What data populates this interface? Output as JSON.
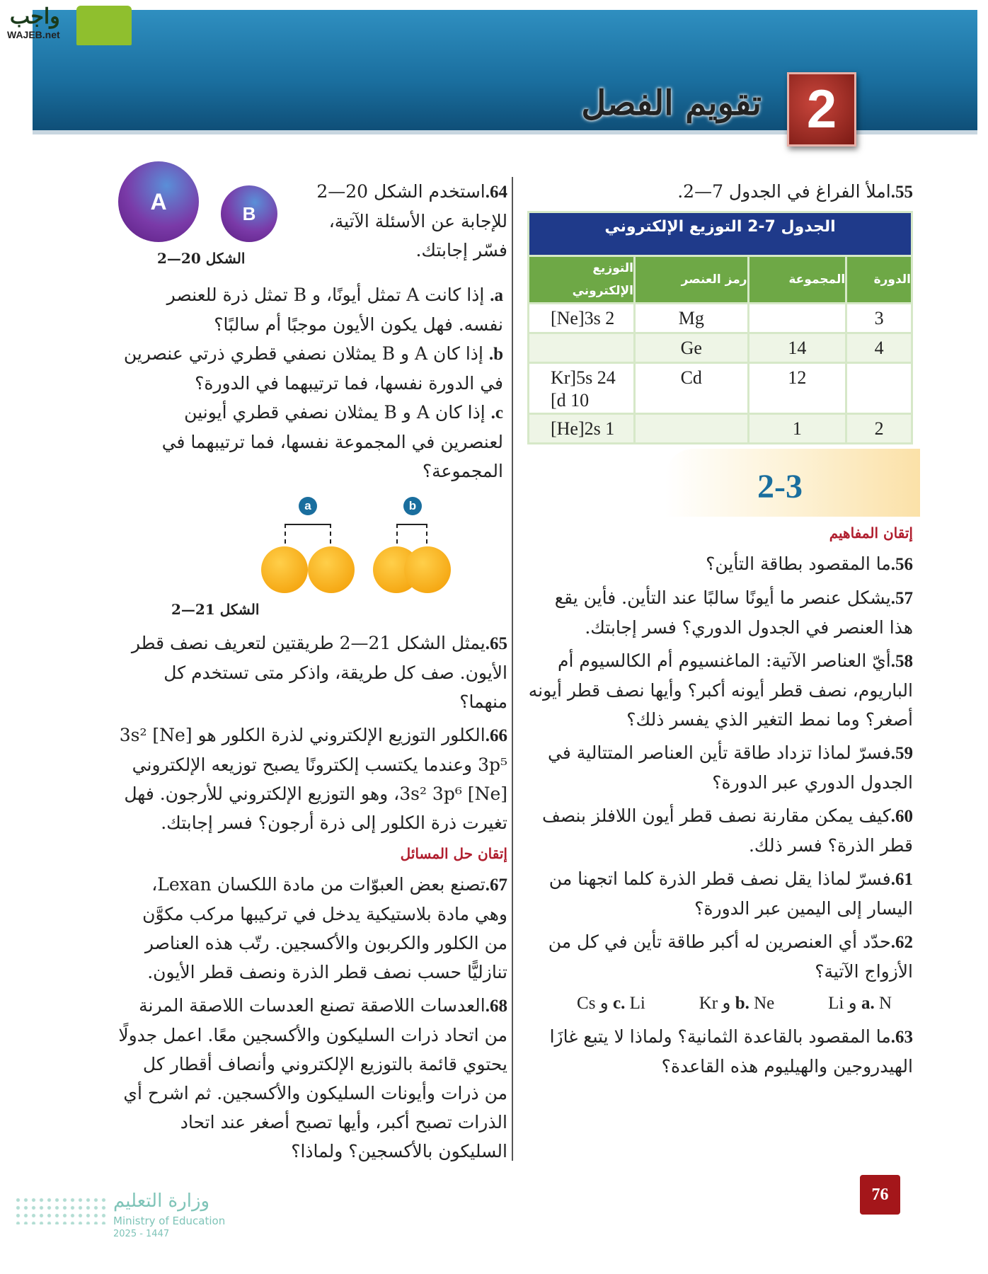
{
  "logo": {
    "text": "واجب",
    "sub": "WAJEB.net"
  },
  "header": {
    "title": "تقويم الفصل",
    "chapter": "2"
  },
  "right": {
    "q55": {
      "n": "55.",
      "text": "املأ الفراغ في الجدول 7—2."
    },
    "table": {
      "title": "الجدول 7-2 التوزيع الإلكتروني",
      "headers": [
        "الدورة",
        "المجموعة",
        "رمز العنصر",
        "التوزيع الإلكتروني"
      ],
      "rows": [
        [
          "3",
          "",
          "Mg",
          "[Ne]3s 2"
        ],
        [
          "4",
          "14",
          "Ge",
          ""
        ],
        [
          "",
          "12",
          "Cd",
          "Kr]5s 24 [d 10"
        ],
        [
          "2",
          "1",
          "",
          "[He]2s 1"
        ]
      ]
    },
    "section": "2-3",
    "concepts_head": "إتقان المفاهيم",
    "q56": {
      "n": "56.",
      "text": "ما المقصود بطاقة التأين؟"
    },
    "q57": {
      "n": "57.",
      "text": "يشكل عنصر ما أيونًا سالبًا عند التأين. فأين يقع هذا العنصر في الجدول الدوري؟ فسر إجابتك."
    },
    "q58": {
      "n": "58.",
      "text": "أيّ العناصر الآتية: الماغنسيوم أم الكالسيوم أم الباريوم، نصف قطر أيونه أكبر؟ وأيها نصف قطر أيونه أصغر؟ وما نمط التغير الذي يفسر ذلك؟"
    },
    "q59": {
      "n": "59.",
      "text": "فسرّ لماذا تزداد طاقة تأين العناصر المتتالية في الجدول الدوري عبر الدورة؟"
    },
    "q60": {
      "n": "60.",
      "text": "كيف يمكن مقارنة نصف قطر أيون اللافلز بنصف قطر الذرة؟ فسر ذلك."
    },
    "q61": {
      "n": "61.",
      "text": "فسرّ لماذا يقل نصف قطر الذرة كلما اتجهنا من اليسار إلى اليمين عبر الدورة؟"
    },
    "q62": {
      "n": "62.",
      "text": "حدّد أي العنصرين له أكبر طاقة تأين في كل من الأزواج الآتية؟",
      "opts": [
        {
          "l": "a.",
          "t": "N و Li"
        },
        {
          "l": "b.",
          "t": "Ne و Kr"
        },
        {
          "l": "c.",
          "t": "Li و Cs"
        }
      ]
    },
    "q63": {
      "n": "63.",
      "text": "ما المقصود بالقاعدة الثمانية؟ ولماذا لا يتبع غازَا الهيدروجين والهيليوم هذه القاعدة؟"
    }
  },
  "left": {
    "q64": {
      "n": "64.",
      "text": "استخدم الشكل 20—2 للإجابة عن الأسئلة الآتية، فسّر إجابتك.",
      "subs": [
        {
          "l": "a.",
          "t": "إذا كانت A تمثل أيونًا، و B تمثل ذرة للعنصر نفسه. فهل يكون الأيون موجبًا أم سالبًا؟"
        },
        {
          "l": "b.",
          "t": "إذا كان A و B يمثلان نصفي قطري ذرتي عنصرين في الدورة نفسها، فما ترتيبهما في الدورة؟"
        },
        {
          "l": "c.",
          "t": "إذا كان A و B يمثلان نصفي قطري أيونين لعنصرين في المجموعة نفسها، فما ترتيبهما في المجموعة؟"
        }
      ]
    },
    "fig20": {
      "caption": "الشكل 20—2",
      "a": "A",
      "b": "B"
    },
    "fig21": {
      "caption": "الشكل 21—2",
      "a": "a",
      "b": "b"
    },
    "q65": {
      "n": "65.",
      "text": "يمثل الشكل 21—2 طريقتين لتعريف نصف قطر الأيون. صف كل طريقة، واذكر متى تستخدم كل منهما؟"
    },
    "q66": {
      "n": "66.",
      "text": "الكلور التوزيع الإلكتروني لذرة الكلور هو [Ne] 3s² 3p⁵ وعندما يكتسب إلكترونًا يصبح توزيعه الإلكتروني [Ne] 3s² 3p⁶، وهو التوزيع الإلكتروني للأرجون. فهل تغيرت ذرة الكلور إلى ذرة أرجون؟ فسر إجابتك."
    },
    "problems_head": "إتقان حل المسائل",
    "q67": {
      "n": "67.",
      "text": "تصنع بعض العبوّات من مادة اللكسان Lexan، وهي مادة بلاستيكية يدخل في تركيبها مركب مكوَّن من الكلور والكربون والأكسجين. رتّب هذه العناصر تنازليًّا حسب نصف قطر الذرة ونصف قطر الأيون."
    },
    "q68": {
      "n": "68.",
      "text": "العدسات اللاصقة تصنع العدسات اللاصقة المرنة من اتحاد ذرات السليكون والأكسجين معًا. اعمل جدولًا يحتوي قائمة بالتوزيع الإلكتروني وأنصاف أقطار كل من ذرات وأيونات السليكون والأكسجين. ثم اشرح أي الذرات تصبح أكبر، وأيها تصبح أصغر عند اتحاد السليكون بالأكسجين؟ ولماذا؟"
    }
  },
  "ministry": {
    "ar": "وزارة التعليم",
    "en": "Ministry of Education",
    "year": "2025 - 1447"
  },
  "page_number": "76",
  "colors": {
    "band": "#1a6e9e",
    "table_title": "#1f3a8a",
    "table_header": "#6ea846",
    "heading": "#b01e2e",
    "page_badge": "#a4161a"
  }
}
